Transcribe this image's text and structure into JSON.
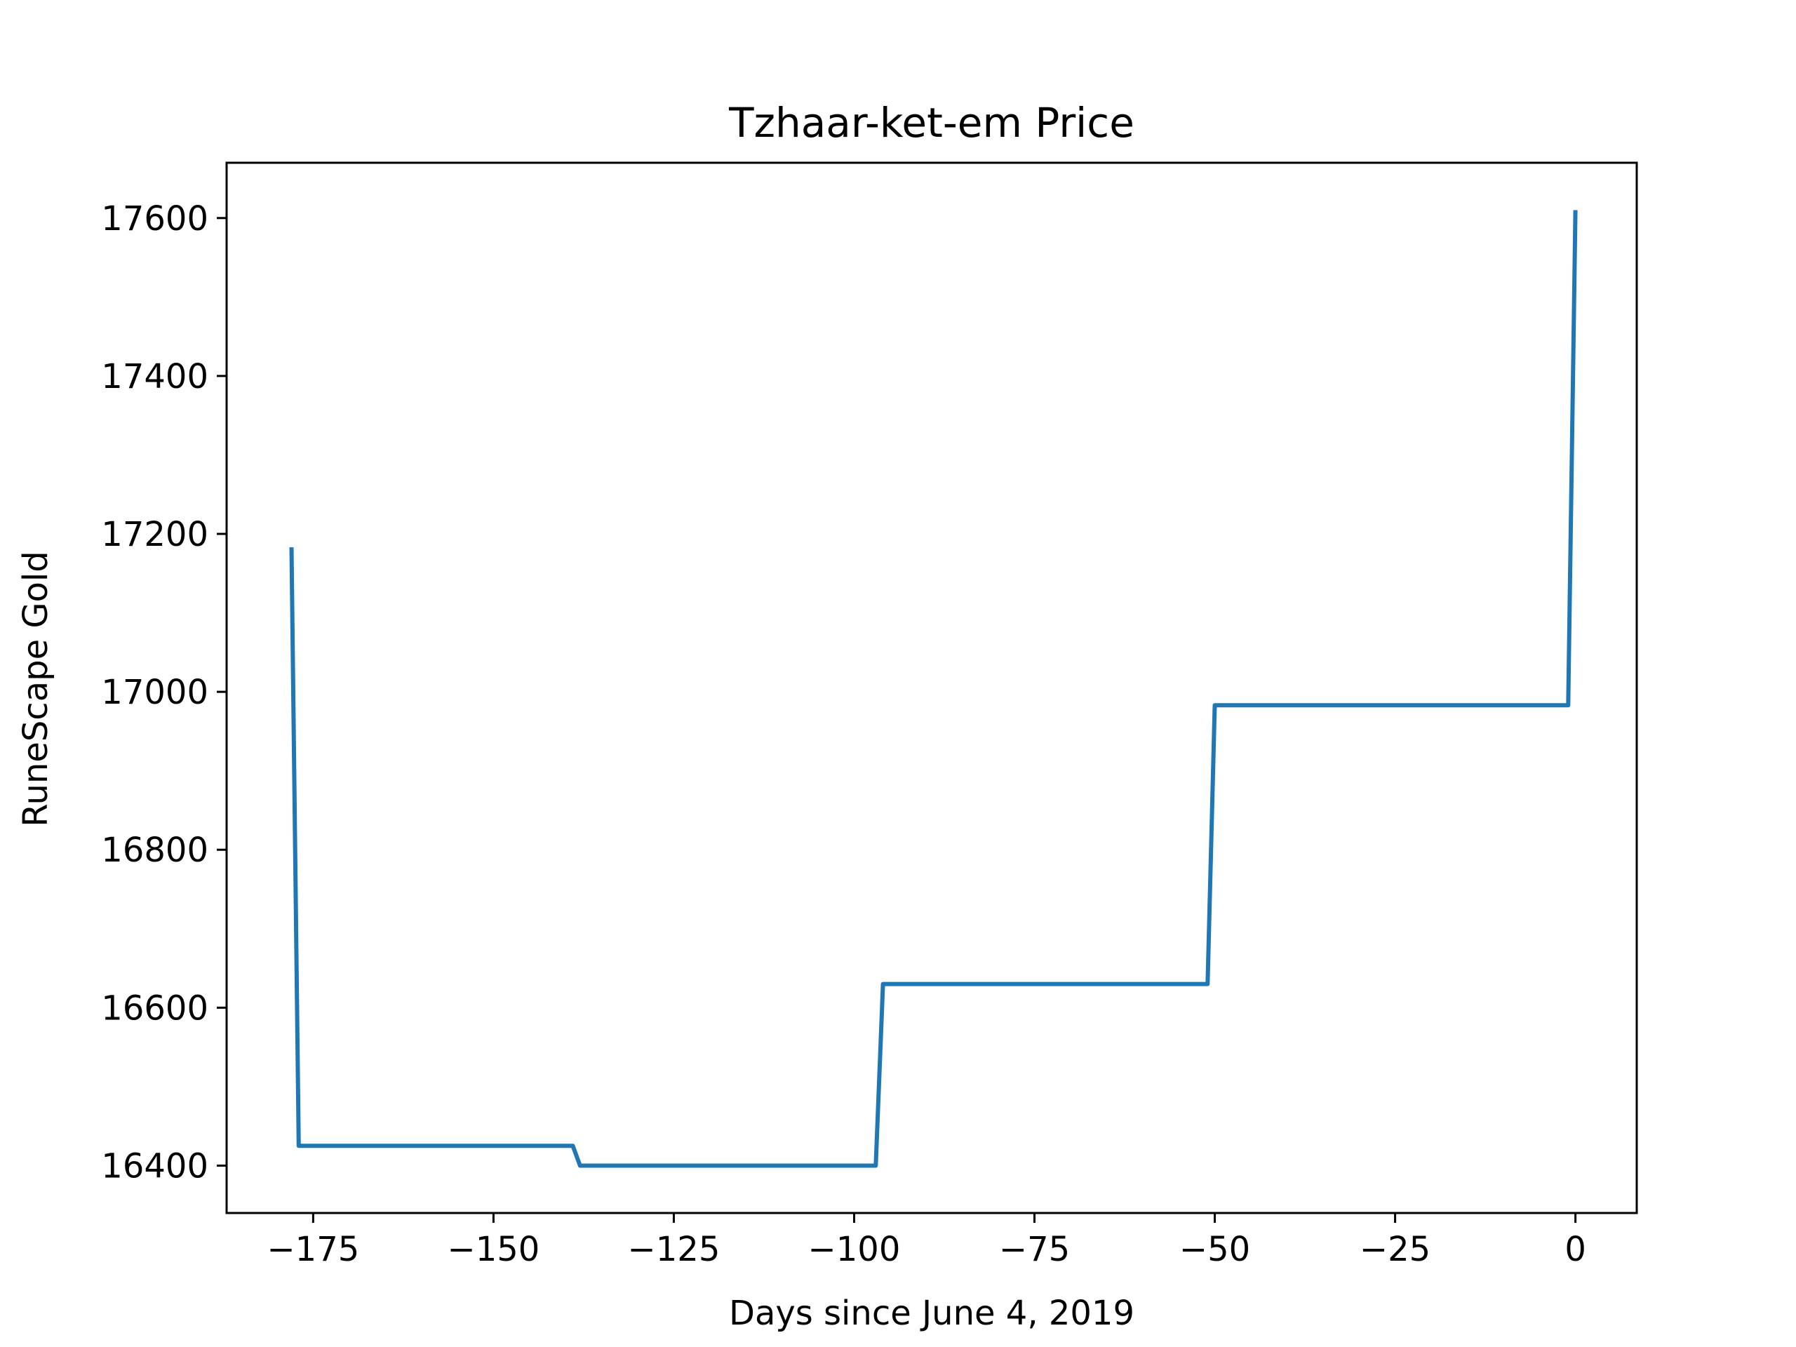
{
  "chart_data": {
    "type": "line",
    "title": "Tzhaar-ket-em Price",
    "xlabel": "Days since June 4, 2019",
    "ylabel": "RuneScape Gold",
    "xlim": [
      -187,
      8.5
    ],
    "ylim": [
      16340,
      17670
    ],
    "xticks": [
      -175,
      -150,
      -125,
      -100,
      -75,
      -50,
      -25,
      0
    ],
    "xtick_labels": [
      "−175",
      "−150",
      "−125",
      "−100",
      "−75",
      "−50",
      "−25",
      "0"
    ],
    "yticks": [
      16400,
      16600,
      16800,
      17000,
      17200,
      17400,
      17600
    ],
    "ytick_labels": [
      "16400",
      "16600",
      "16800",
      "17000",
      "17200",
      "17400",
      "17600"
    ],
    "grid": false,
    "series": [
      {
        "color": "#1f77b4",
        "x": [
          -178,
          -177,
          -139,
          -138,
          -97,
          -96,
          -51,
          -50,
          -1,
          0
        ],
        "y": [
          17183,
          16425,
          16425,
          16400,
          16400,
          16630,
          16630,
          16983,
          16983,
          17610
        ]
      }
    ]
  }
}
